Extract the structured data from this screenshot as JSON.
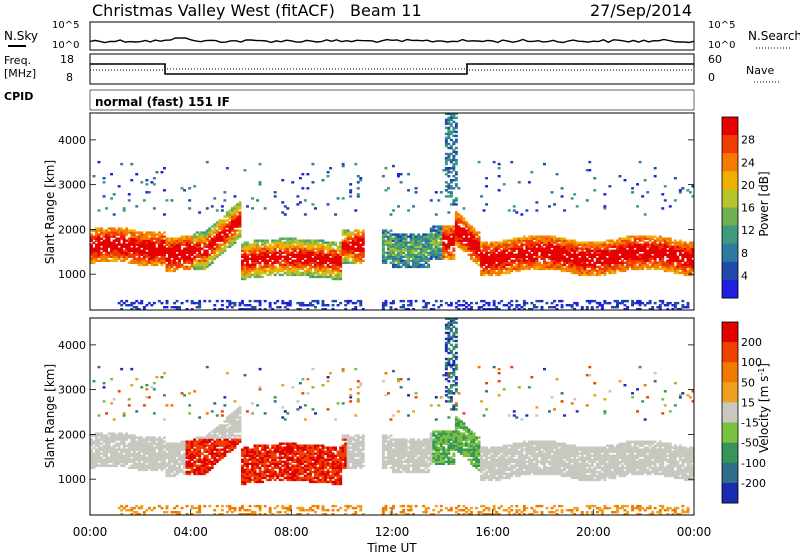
{
  "header": {
    "title": "Christmas Valley West (fitACF)",
    "beam": "Beam 11",
    "date": "27/Sep/2014"
  },
  "status_panels": {
    "noise": {
      "left_label": "N.Sky",
      "right_label": "N.Search",
      "left_ticks": [
        "10^5",
        "10^0"
      ],
      "right_ticks": [
        "10^5",
        "10^0"
      ]
    },
    "frequency": {
      "left_label_1": "Freq.",
      "left_label_2": "[MHz]",
      "right_label": "Nave",
      "left_ticks": [
        "18",
        "8"
      ],
      "right_ticks": [
        "60",
        "0"
      ]
    },
    "cpid": {
      "label": "CPID",
      "mode": "normal (fast) 151 IF"
    }
  },
  "chart_data": [
    {
      "type": "heatmap",
      "name": "power",
      "ylabel": "Slant Range [km]",
      "ylim": [
        200,
        4600
      ],
      "yticks": [
        "1000",
        "2000",
        "3000",
        "4000"
      ],
      "colorbar": {
        "label": "Power [dB]",
        "ticks": [
          "4",
          "8",
          "12",
          "16",
          "20",
          "24",
          "28"
        ],
        "range": [
          0,
          32
        ],
        "colors": [
          "#1f1fe0",
          "#1e4aa8",
          "#2e7aa0",
          "#3d9a7a",
          "#6fb050",
          "#b8c52a",
          "#f0b000",
          "#f77a00",
          "#f03c00",
          "#e80000"
        ]
      }
    },
    {
      "type": "heatmap",
      "name": "velocity",
      "ylabel": "Slant Range [km]",
      "ylim": [
        200,
        4600
      ],
      "yticks": [
        "1000",
        "2000",
        "3000",
        "4000"
      ],
      "xlabel": "Time UT",
      "xticks": [
        "00:00",
        "04:00",
        "08:00",
        "12:00",
        "16:00",
        "20:00",
        "00:00"
      ],
      "colorbar": {
        "label": "Velocity [m s",
        "label_sup": "-1",
        "label_end": "]",
        "ticks": [
          "200",
          "100",
          "50",
          "15",
          "-15",
          "-50",
          "-100",
          "-200"
        ],
        "colors": [
          "#1c2bb0",
          "#2e6f8a",
          "#36965a",
          "#7cc040",
          "#c8c8c0",
          "#f0a020",
          "#f07a00",
          "#f04000",
          "#e00000"
        ]
      }
    }
  ]
}
